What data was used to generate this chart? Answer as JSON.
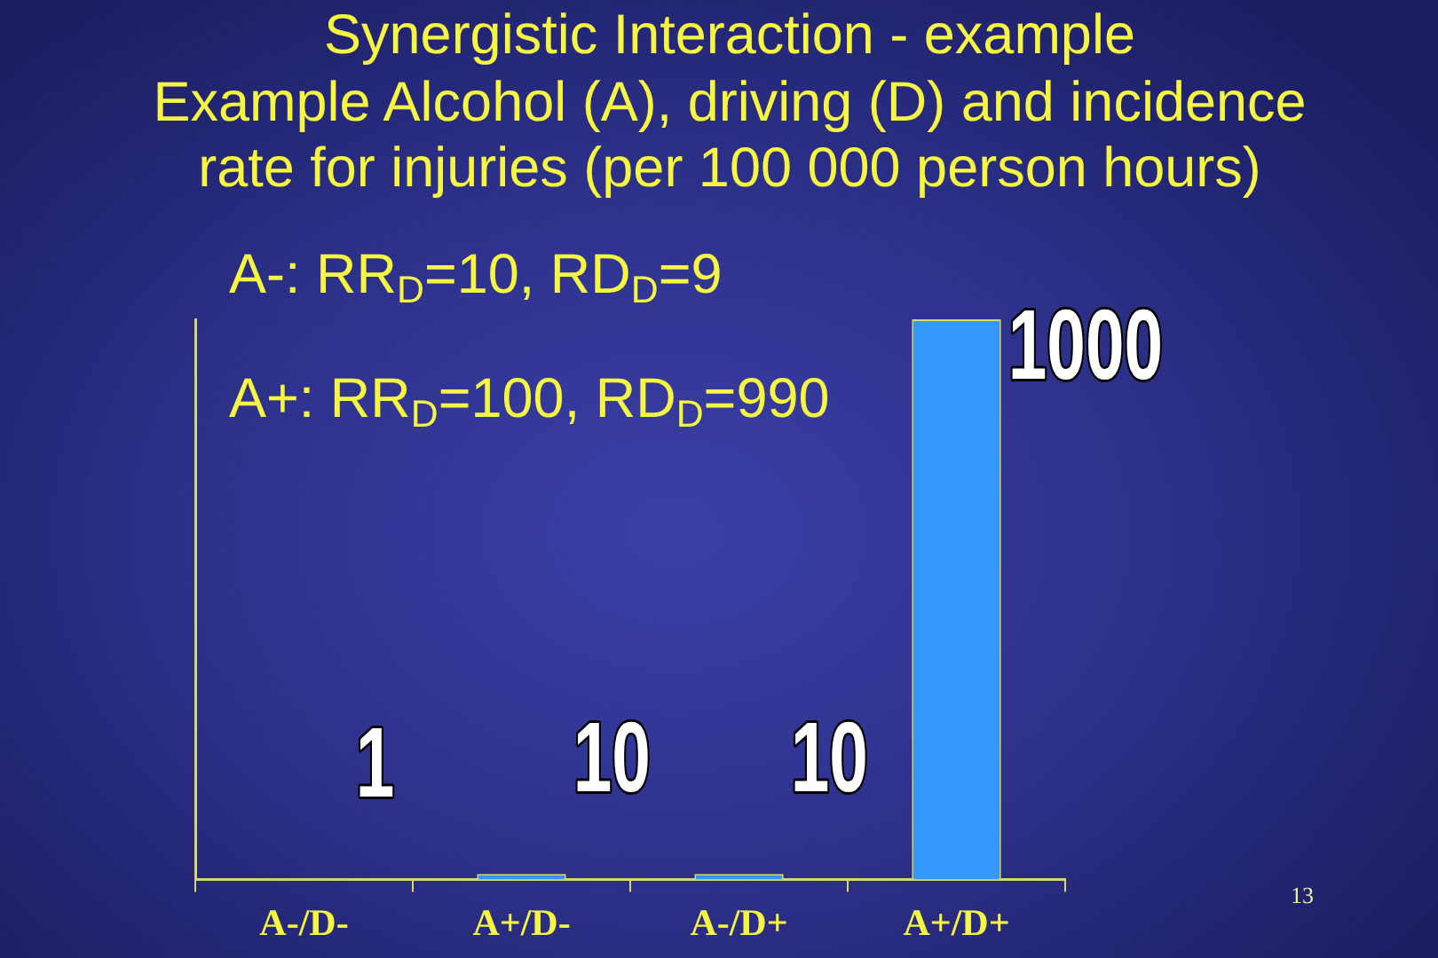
{
  "chart_data": {
    "type": "bar",
    "title": "Synergistic Interaction - example\nExample Alcohol (A), driving (D) and incidence\nrate for injuries (per 100 000 person hours)",
    "categories": [
      "A-/D-",
      "A+/D-",
      "A-/D+",
      "A+/D+"
    ],
    "values": [
      1,
      10,
      10,
      1000
    ],
    "color": "#3399ff",
    "data_labels": true,
    "tick_labels": "x",
    "annotations": [
      "A-: RR$_{D}$=10, RD$_{D}$=9",
      "A+: RR$_{D}$=100, RD$_{D}$=990",
      "13"
    ]
  }
}
